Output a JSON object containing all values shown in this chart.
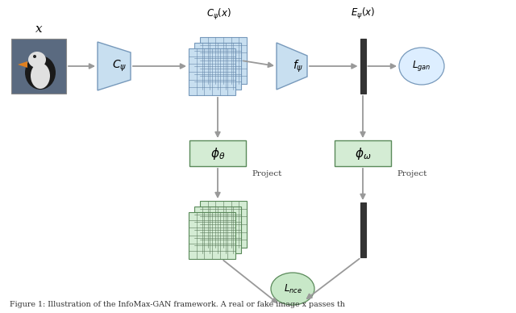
{
  "bg_color": "#ffffff",
  "arrow_color": "#999999",
  "blue_fill": "#c8dff0",
  "blue_edge": "#7799bb",
  "green_fill": "#d4ecd4",
  "green_edge": "#5a8a5a",
  "grid_line_blue": "#6688aa",
  "grid_line_green": "#5a7a5a",
  "dark_rect_fill": "#333333",
  "dark_rect_edge": "#333333",
  "ellipse_blue_fill": "#ddeeff",
  "ellipse_blue_edge": "#7799bb",
  "ellipse_green_fill": "#c8e8c8",
  "ellipse_green_edge": "#5a8a5a",
  "caption": "1: Illustration of the InfoMax-GAN framework. A real or fake image x passes th",
  "label_x": "x",
  "label_C": "$C_{\\psi}$",
  "label_Cpsi_x": "$C_{\\psi}(x)$",
  "label_f": "$f_{\\psi}$",
  "label_E": "$E_{\\psi}(x)$",
  "label_Lgan": "$L_{gan}$",
  "label_phi_theta": "$\\phi_{\\theta}$",
  "label_phi_omega": "$\\phi_{\\omega}$",
  "label_project1": "Project",
  "label_project2": "Project",
  "label_Lnce": "$L_{nce}$"
}
